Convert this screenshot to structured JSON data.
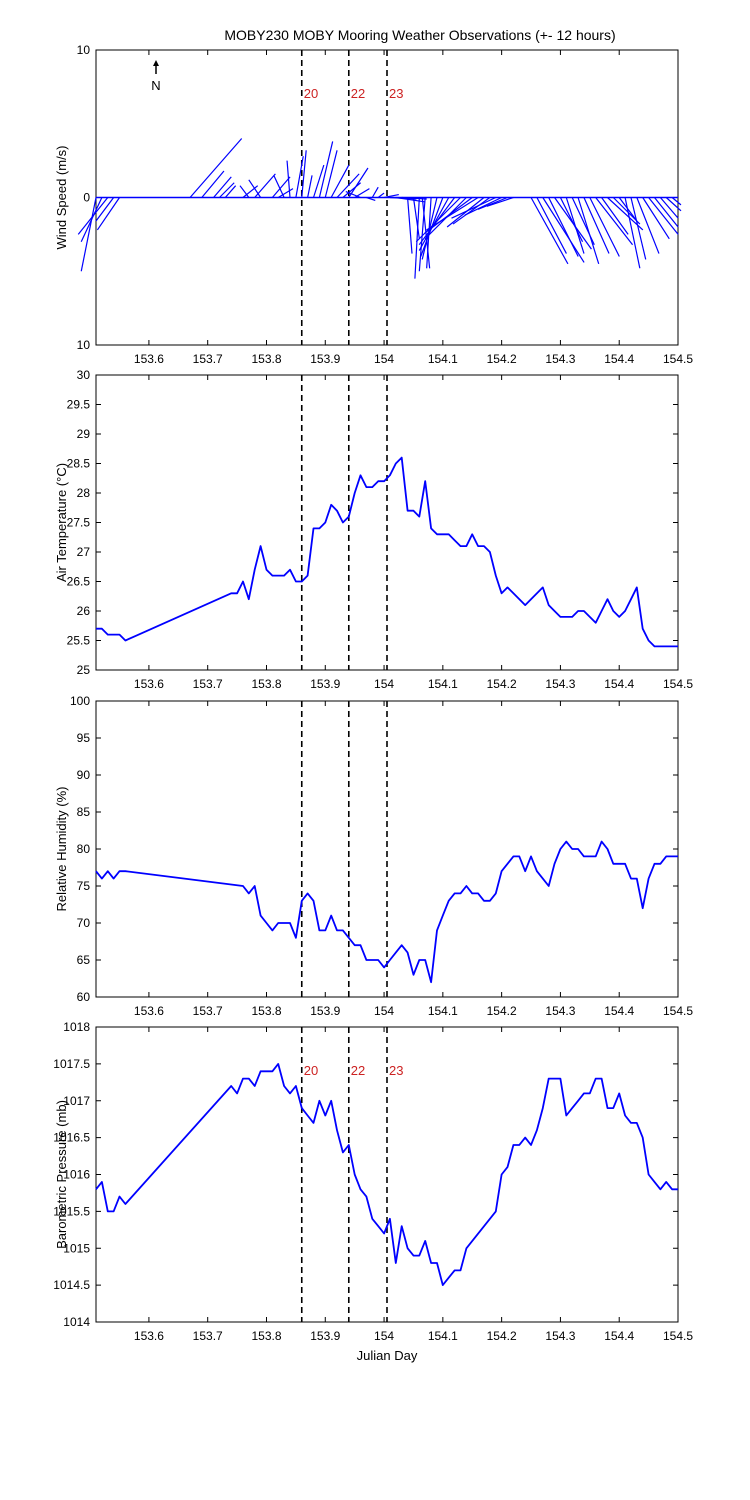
{
  "title": "MOBY230 MOBY Mooring Weather Observations (+- 12 hours)",
  "colors": {
    "series": "#0000ff",
    "marker_label": "#cc2222",
    "axis": "#000000"
  },
  "markers": [
    {
      "label": "20",
      "x": 153.86
    },
    {
      "label": "22",
      "x": 153.94
    },
    {
      "label": "23",
      "x": 154.005
    }
  ],
  "chart_data": [
    {
      "type": "quiver",
      "name": "wind",
      "ylabel": "Wind Speed (m/s)",
      "xlim": [
        153.51,
        154.5
      ],
      "ylim": [
        -10,
        10
      ],
      "yticks": [
        10,
        0,
        10
      ],
      "north_label": "N",
      "show_markers": true,
      "xticks": [
        153.6,
        153.7,
        153.8,
        153.9,
        154,
        154.1,
        154.2,
        154.3,
        154.4,
        154.5
      ],
      "vectors": [
        {
          "x": 153.51,
          "u": -1.0,
          "v": -5.0
        },
        {
          "x": 153.52,
          "u": -1.4,
          "v": -3.0
        },
        {
          "x": 153.53,
          "u": -2.0,
          "v": -2.5
        },
        {
          "x": 153.54,
          "u": -1.2,
          "v": -1.6
        },
        {
          "x": 153.55,
          "u": -1.5,
          "v": -2.2
        },
        {
          "x": 153.67,
          "u": 3.5,
          "v": 4.0
        },
        {
          "x": 153.69,
          "u": 1.5,
          "v": 1.8
        },
        {
          "x": 153.71,
          "u": 1.2,
          "v": 1.4
        },
        {
          "x": 153.72,
          "u": 1.0,
          "v": 1.0
        },
        {
          "x": 153.73,
          "u": 0.7,
          "v": 0.8
        },
        {
          "x": 153.76,
          "u": 1.0,
          "v": 0.8
        },
        {
          "x": 153.77,
          "u": -0.6,
          "v": 0.8
        },
        {
          "x": 153.78,
          "u": 1.4,
          "v": 1.6
        },
        {
          "x": 153.79,
          "u": -0.8,
          "v": 1.2
        },
        {
          "x": 153.81,
          "u": 1.2,
          "v": 1.4
        },
        {
          "x": 153.82,
          "u": 1.0,
          "v": 0.6
        },
        {
          "x": 153.83,
          "u": -0.7,
          "v": 1.5
        },
        {
          "x": 153.84,
          "u": -0.2,
          "v": 2.5
        },
        {
          "x": 153.85,
          "u": 0.5,
          "v": 2.8
        },
        {
          "x": 153.86,
          "u": 0.3,
          "v": 3.2
        },
        {
          "x": 153.87,
          "u": 0.3,
          "v": 1.5
        },
        {
          "x": 153.88,
          "u": 0.7,
          "v": 2.2
        },
        {
          "x": 153.89,
          "u": 0.9,
          "v": 3.8
        },
        {
          "x": 153.9,
          "u": 0.8,
          "v": 3.2
        },
        {
          "x": 153.91,
          "u": 1.2,
          "v": 2.2
        },
        {
          "x": 153.92,
          "u": 1.5,
          "v": 1.6
        },
        {
          "x": 153.93,
          "u": 1.2,
          "v": 1.0
        },
        {
          "x": 153.94,
          "u": 1.3,
          "v": 2.0
        },
        {
          "x": 153.95,
          "u": 1.0,
          "v": 0.6
        },
        {
          "x": 153.96,
          "u": -1.0,
          "v": 0.4
        },
        {
          "x": 153.97,
          "u": 0.6,
          "v": -0.2
        },
        {
          "x": 153.98,
          "u": 0.4,
          "v": 0.7
        },
        {
          "x": 153.99,
          "u": 0.4,
          "v": 0.3
        },
        {
          "x": 154.0,
          "u": 1.0,
          "v": 0.2
        },
        {
          "x": 154.01,
          "u": 1.8,
          "v": -0.1
        },
        {
          "x": 154.02,
          "u": 2.0,
          "v": -0.3
        },
        {
          "x": 154.03,
          "u": 1.7,
          "v": -0.1
        },
        {
          "x": 154.04,
          "u": 0.3,
          "v": -3.8
        },
        {
          "x": 154.05,
          "u": 0.4,
          "v": -2.8
        },
        {
          "x": 154.06,
          "u": -0.3,
          "v": -5.5
        },
        {
          "x": 154.065,
          "u": 0.5,
          "v": -4.8
        },
        {
          "x": 154.07,
          "u": -0.4,
          "v": -5.0
        },
        {
          "x": 154.08,
          "u": -0.3,
          "v": -4.8
        },
        {
          "x": 154.09,
          "u": -1.0,
          "v": -4.2
        },
        {
          "x": 154.1,
          "u": -1.5,
          "v": -4.0
        },
        {
          "x": 154.11,
          "u": -2.0,
          "v": -3.6
        },
        {
          "x": 154.12,
          "u": -2.4,
          "v": -3.2
        },
        {
          "x": 154.13,
          "u": -3.0,
          "v": -3.0
        },
        {
          "x": 154.14,
          "u": -2.8,
          "v": -2.8
        },
        {
          "x": 154.15,
          "u": -3.2,
          "v": -2.4
        },
        {
          "x": 154.16,
          "u": -3.5,
          "v": -2.2
        },
        {
          "x": 154.17,
          "u": -2.5,
          "v": -2.0
        },
        {
          "x": 154.18,
          "u": -2.5,
          "v": -1.8
        },
        {
          "x": 154.19,
          "u": -3.0,
          "v": -1.4
        },
        {
          "x": 154.2,
          "u": -2.5,
          "v": -1.2
        },
        {
          "x": 154.21,
          "u": -2.0,
          "v": -0.8
        },
        {
          "x": 154.22,
          "u": -1.8,
          "v": -0.6
        },
        {
          "x": 154.25,
          "u": 2.5,
          "v": -4.5
        },
        {
          "x": 154.26,
          "u": 2.0,
          "v": -3.8
        },
        {
          "x": 154.27,
          "u": 2.8,
          "v": -4.4
        },
        {
          "x": 154.28,
          "u": 2.0,
          "v": -4.0
        },
        {
          "x": 154.29,
          "u": 2.5,
          "v": -3.5
        },
        {
          "x": 154.3,
          "u": 1.5,
          "v": -3.0
        },
        {
          "x": 154.31,
          "u": 1.2,
          "v": -3.8
        },
        {
          "x": 154.32,
          "u": 1.5,
          "v": -3.2
        },
        {
          "x": 154.33,
          "u": 1.4,
          "v": -4.5
        },
        {
          "x": 154.34,
          "u": 1.7,
          "v": -3.8
        },
        {
          "x": 154.35,
          "u": 2.0,
          "v": -4.0
        },
        {
          "x": 154.36,
          "u": 2.5,
          "v": -3.2
        },
        {
          "x": 154.37,
          "u": 1.8,
          "v": -2.5
        },
        {
          "x": 154.38,
          "u": 2.4,
          "v": -2.2
        },
        {
          "x": 154.39,
          "u": 1.8,
          "v": -1.8
        },
        {
          "x": 154.4,
          "u": 1.2,
          "v": -1.6
        },
        {
          "x": 154.41,
          "u": 1.0,
          "v": -4.8
        },
        {
          "x": 154.42,
          "u": 1.0,
          "v": -4.2
        },
        {
          "x": 154.43,
          "u": 1.5,
          "v": -3.8
        },
        {
          "x": 154.44,
          "u": 1.8,
          "v": -2.8
        },
        {
          "x": 154.45,
          "u": 2.0,
          "v": -2.5
        },
        {
          "x": 154.46,
          "u": 1.6,
          "v": -2.0
        },
        {
          "x": 154.47,
          "u": 1.2,
          "v": -1.4
        },
        {
          "x": 154.48,
          "u": 1.0,
          "v": -0.9
        },
        {
          "x": 154.49,
          "u": 0.6,
          "v": -0.5
        }
      ]
    },
    {
      "type": "line",
      "name": "air_temperature",
      "ylabel": "Air Temperature (°C)",
      "xlim": [
        153.51,
        154.5
      ],
      "ylim": [
        25,
        30
      ],
      "yticks": [
        25,
        25.5,
        26,
        26.5,
        27,
        27.5,
        28,
        28.5,
        29,
        29.5,
        30
      ],
      "show_markers": false,
      "xticks": [
        153.6,
        153.7,
        153.8,
        153.9,
        154,
        154.1,
        154.2,
        154.3,
        154.4,
        154.5
      ],
      "x": [
        153.51,
        153.52,
        153.53,
        153.54,
        153.55,
        153.56,
        153.74,
        153.75,
        153.76,
        153.77,
        153.78,
        153.79,
        153.8,
        153.81,
        153.82,
        153.83,
        153.84,
        153.85,
        153.86,
        153.87,
        153.88,
        153.89,
        153.9,
        153.91,
        153.92,
        153.93,
        153.94,
        153.95,
        153.96,
        153.97,
        153.98,
        153.99,
        154.0,
        154.01,
        154.02,
        154.03,
        154.04,
        154.05,
        154.06,
        154.07,
        154.08,
        154.09,
        154.1,
        154.11,
        154.12,
        154.13,
        154.14,
        154.15,
        154.16,
        154.17,
        154.18,
        154.19,
        154.2,
        154.21,
        154.22,
        154.24,
        154.25,
        154.27,
        154.28,
        154.29,
        154.3,
        154.31,
        154.32,
        154.33,
        154.34,
        154.35,
        154.36,
        154.37,
        154.38,
        154.39,
        154.4,
        154.41,
        154.42,
        154.43,
        154.44,
        154.45,
        154.46,
        154.47,
        154.48,
        154.49,
        154.5
      ],
      "y": [
        25.7,
        25.7,
        25.6,
        25.6,
        25.6,
        25.5,
        26.3,
        26.3,
        26.5,
        26.2,
        26.7,
        27.1,
        26.7,
        26.6,
        26.6,
        26.6,
        26.7,
        26.5,
        26.5,
        26.6,
        27.4,
        27.4,
        27.5,
        27.8,
        27.7,
        27.5,
        27.6,
        28.0,
        28.3,
        28.1,
        28.1,
        28.2,
        28.2,
        28.3,
        28.5,
        28.6,
        27.7,
        27.7,
        27.6,
        28.2,
        27.4,
        27.3,
        27.3,
        27.3,
        27.2,
        27.1,
        27.1,
        27.3,
        27.1,
        27.1,
        27.0,
        26.6,
        26.3,
        26.4,
        26.3,
        26.1,
        26.2,
        26.4,
        26.1,
        26.0,
        25.9,
        25.9,
        25.9,
        26.0,
        26.0,
        25.9,
        25.8,
        26.0,
        26.2,
        26.0,
        25.9,
        26.0,
        26.2,
        26.4,
        25.7,
        25.5,
        25.4,
        25.4,
        25.4,
        25.4,
        25.4
      ]
    },
    {
      "type": "line",
      "name": "relative_humidity",
      "ylabel": "Relative Humidity (%)",
      "xlim": [
        153.51,
        154.5
      ],
      "ylim": [
        60,
        100
      ],
      "yticks": [
        60,
        65,
        70,
        75,
        80,
        85,
        90,
        95,
        100
      ],
      "show_markers": false,
      "xticks": [
        153.6,
        153.7,
        153.8,
        153.9,
        154,
        154.1,
        154.2,
        154.3,
        154.4,
        154.5
      ],
      "x": [
        153.51,
        153.52,
        153.53,
        153.54,
        153.55,
        153.56,
        153.76,
        153.77,
        153.78,
        153.79,
        153.8,
        153.81,
        153.82,
        153.83,
        153.84,
        153.85,
        153.86,
        153.87,
        153.88,
        153.89,
        153.9,
        153.91,
        153.92,
        153.93,
        153.94,
        153.95,
        153.96,
        153.97,
        153.98,
        153.99,
        154.0,
        154.01,
        154.02,
        154.03,
        154.04,
        154.05,
        154.06,
        154.07,
        154.08,
        154.09,
        154.1,
        154.11,
        154.12,
        154.13,
        154.14,
        154.15,
        154.16,
        154.17,
        154.18,
        154.19,
        154.2,
        154.21,
        154.22,
        154.23,
        154.24,
        154.25,
        154.26,
        154.27,
        154.28,
        154.29,
        154.3,
        154.31,
        154.32,
        154.33,
        154.34,
        154.35,
        154.36,
        154.37,
        154.38,
        154.39,
        154.4,
        154.41,
        154.42,
        154.43,
        154.44,
        154.45,
        154.46,
        154.47,
        154.48,
        154.49,
        154.5
      ],
      "y": [
        77,
        76,
        77,
        76,
        77,
        77,
        75,
        74,
        75,
        71,
        70,
        69,
        70,
        70,
        70,
        68,
        73,
        74,
        73,
        69,
        69,
        71,
        69,
        69,
        68,
        67,
        67,
        65,
        65,
        65,
        64,
        65,
        66,
        67,
        66,
        63,
        65,
        65,
        62,
        69,
        71,
        73,
        74,
        74,
        75,
        74,
        74,
        73,
        73,
        74,
        77,
        78,
        79,
        79,
        77,
        79,
        77,
        76,
        75,
        78,
        80,
        81,
        80,
        80,
        79,
        79,
        79,
        81,
        80,
        78,
        78,
        78,
        76,
        76,
        72,
        76,
        78,
        78,
        79,
        79,
        79
      ]
    },
    {
      "type": "line",
      "name": "barometric_pressure",
      "ylabel": "Barometric Pressure (mb)",
      "xlabel": "Julian Day",
      "xlim": [
        153.51,
        154.5
      ],
      "ylim": [
        1014,
        1018
      ],
      "yticks": [
        1014,
        1014.5,
        1015,
        1015.5,
        1016,
        1016.5,
        1017,
        1017.5,
        1018
      ],
      "show_markers": true,
      "xticks": [
        153.6,
        153.7,
        153.8,
        153.9,
        154,
        154.1,
        154.2,
        154.3,
        154.4,
        154.5
      ],
      "x": [
        153.51,
        153.52,
        153.53,
        153.54,
        153.55,
        153.56,
        153.74,
        153.75,
        153.76,
        153.77,
        153.78,
        153.79,
        153.8,
        153.81,
        153.82,
        153.83,
        153.84,
        153.85,
        153.86,
        153.87,
        153.88,
        153.89,
        153.9,
        153.91,
        153.92,
        153.93,
        153.94,
        153.95,
        153.96,
        153.97,
        153.98,
        153.99,
        154.0,
        154.01,
        154.02,
        154.03,
        154.04,
        154.05,
        154.06,
        154.07,
        154.08,
        154.09,
        154.1,
        154.11,
        154.12,
        154.13,
        154.14,
        154.19,
        154.2,
        154.21,
        154.22,
        154.23,
        154.24,
        154.25,
        154.26,
        154.27,
        154.28,
        154.29,
        154.3,
        154.31,
        154.32,
        154.33,
        154.34,
        154.35,
        154.36,
        154.37,
        154.38,
        154.39,
        154.4,
        154.41,
        154.42,
        154.43,
        154.44,
        154.45,
        154.46,
        154.47,
        154.48,
        154.49,
        154.5
      ],
      "y": [
        1015.8,
        1015.9,
        1015.5,
        1015.5,
        1015.7,
        1015.6,
        1017.2,
        1017.1,
        1017.3,
        1017.3,
        1017.2,
        1017.4,
        1017.4,
        1017.4,
        1017.5,
        1017.2,
        1017.1,
        1017.2,
        1016.9,
        1016.8,
        1016.7,
        1017.0,
        1016.8,
        1017.0,
        1016.6,
        1016.3,
        1016.4,
        1016.0,
        1015.8,
        1015.7,
        1015.4,
        1015.3,
        1015.2,
        1015.4,
        1014.8,
        1015.3,
        1015.0,
        1014.9,
        1014.9,
        1015.1,
        1014.8,
        1014.8,
        1014.5,
        1014.6,
        1014.7,
        1014.7,
        1015.0,
        1015.5,
        1016.0,
        1016.1,
        1016.4,
        1016.4,
        1016.5,
        1016.4,
        1016.6,
        1016.9,
        1017.3,
        1017.3,
        1017.3,
        1016.8,
        1016.9,
        1017.0,
        1017.1,
        1017.1,
        1017.3,
        1017.3,
        1016.9,
        1016.9,
        1017.1,
        1016.8,
        1016.7,
        1016.7,
        1016.5,
        1016.0,
        1015.9,
        1015.8,
        1015.9,
        1015.8,
        1015.8
      ]
    }
  ]
}
